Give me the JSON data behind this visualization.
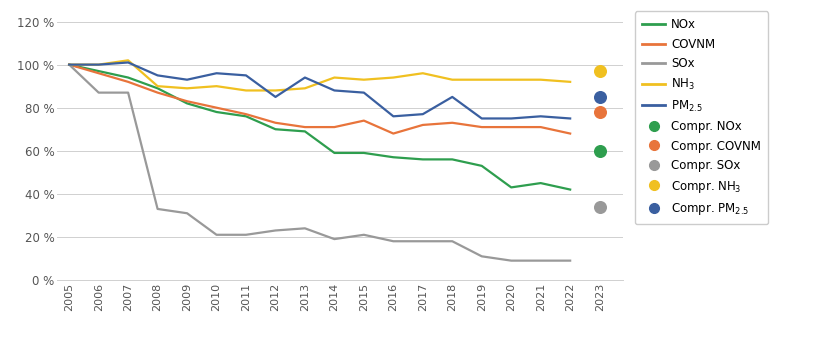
{
  "years": [
    2005,
    2006,
    2007,
    2008,
    2009,
    2010,
    2011,
    2012,
    2013,
    2014,
    2015,
    2016,
    2017,
    2018,
    2019,
    2020,
    2021,
    2022
  ],
  "NOx": [
    100,
    97,
    94,
    89,
    82,
    78,
    76,
    70,
    69,
    59,
    59,
    57,
    56,
    56,
    53,
    43,
    45,
    42
  ],
  "COVNM": [
    100,
    96,
    92,
    87,
    83,
    80,
    77,
    73,
    71,
    71,
    74,
    68,
    72,
    73,
    71,
    71,
    71,
    68
  ],
  "SOx": [
    100,
    87,
    87,
    33,
    31,
    21,
    21,
    23,
    24,
    19,
    21,
    18,
    18,
    18,
    11,
    9,
    9,
    9
  ],
  "NH3": [
    100,
    100,
    102,
    90,
    89,
    90,
    88,
    88,
    89,
    94,
    93,
    94,
    96,
    93,
    93,
    93,
    93,
    92
  ],
  "PM25": [
    100,
    100,
    101,
    95,
    93,
    96,
    95,
    85,
    94,
    88,
    87,
    76,
    77,
    85,
    75,
    75,
    76,
    75
  ],
  "dot_year": 2023,
  "compr_NOx": 60,
  "compr_COVNM": 78,
  "compr_SOx": 34,
  "compr_NH3": 97,
  "compr_PM25": 85,
  "color_NOx": "#2e9e4e",
  "color_COVNM": "#e8743b",
  "color_SOx": "#999999",
  "color_NH3": "#f0c020",
  "color_PM25": "#3a5fa0",
  "ylim": [
    0,
    125
  ],
  "yticks": [
    0,
    20,
    40,
    60,
    80,
    100,
    120
  ],
  "ytick_labels": [
    "0 %",
    "20 %",
    "40 %",
    "60 %",
    "80 %",
    "100 %",
    "120 %"
  ],
  "xtick_years": [
    2005,
    2006,
    2007,
    2008,
    2009,
    2010,
    2011,
    2012,
    2013,
    2014,
    2015,
    2016,
    2017,
    2018,
    2019,
    2020,
    2021,
    2022,
    2023
  ],
  "background_color": "#ffffff",
  "grid_color": "#d0d0d0"
}
